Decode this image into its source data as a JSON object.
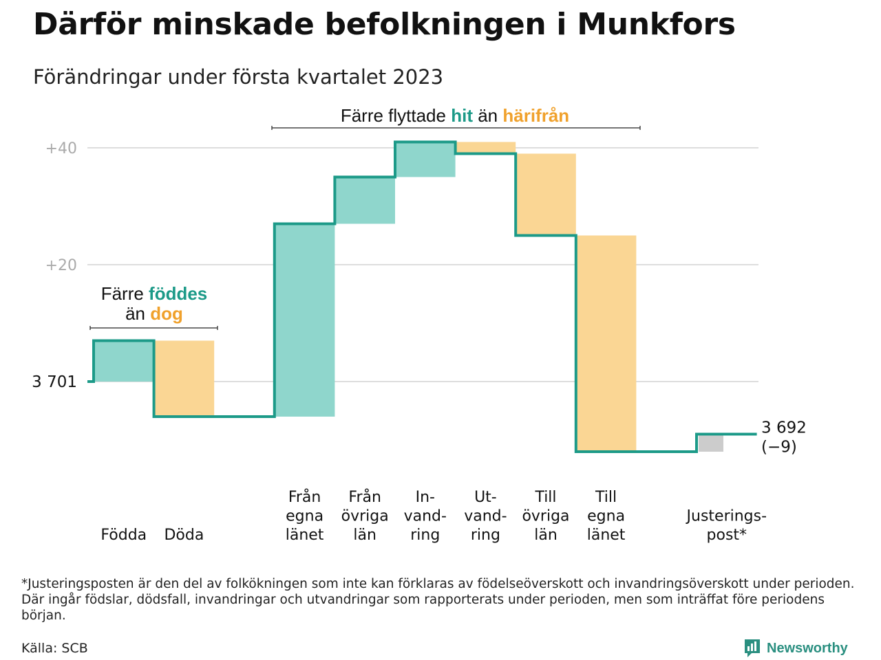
{
  "title": "Därför minskade befolkningen i Munkfors",
  "subtitle": "Förändringar under första kvartalet 2023",
  "colors": {
    "positive": "#8fd6cc",
    "negative": "#fad694",
    "adjustment": "#cccccc",
    "line": "#1c9a88",
    "accent_teal": "#1c9a88",
    "accent_orange": "#f0a12c",
    "grid": "#dddddd",
    "tick_text": "#aaaaaa"
  },
  "annotations": {
    "births": {
      "line1_prefix": "Färre ",
      "line1_highlight": "föddes",
      "line2_prefix": "än ",
      "line2_highlight": "dog"
    },
    "migration": {
      "prefix": "Färre flyttade ",
      "highlight1": "hit",
      "middle": " än ",
      "highlight2": "härifrån"
    }
  },
  "footnote": "*Justeringsposten är den del av folkökningen som inte kan förklaras av födelseöverskott och invandringsöverskott under perioden. Där ingår födslar, dödsfall, invandringar och utvandringar som rapporterats under perioden, men som inträffat före periodens början.",
  "source": "Källa: SCB",
  "brand": "Newsworthy",
  "chart_data": {
    "type": "waterfall",
    "start_value": 3701,
    "start_label": "3 701",
    "end_value": 3692,
    "end_label": "3 692",
    "end_change_label": "(−9)",
    "y_ticks": [
      {
        "value": 20,
        "label": "+20"
      },
      {
        "value": 40,
        "label": "+40"
      }
    ],
    "ylim": [
      -15,
      41
    ],
    "grid": true,
    "steps": [
      {
        "label_lines": [
          "Födda"
        ],
        "change": 7,
        "kind": "positive"
      },
      {
        "label_lines": [
          "Döda"
        ],
        "change": -13,
        "kind": "negative"
      },
      {
        "label_lines": [],
        "change": 0,
        "kind": "gap"
      },
      {
        "label_lines": [
          "Från",
          "egna",
          "länet"
        ],
        "change": 33,
        "kind": "positive"
      },
      {
        "label_lines": [
          "Från",
          "övriga",
          "län"
        ],
        "change": 8,
        "kind": "positive"
      },
      {
        "label_lines": [
          "In-",
          "vand-",
          "ring"
        ],
        "change": 6,
        "kind": "positive"
      },
      {
        "label_lines": [
          "Ut-",
          "vand-",
          "ring"
        ],
        "change": -2,
        "kind": "negative"
      },
      {
        "label_lines": [
          "Till",
          "övriga",
          "län"
        ],
        "change": -14,
        "kind": "negative"
      },
      {
        "label_lines": [
          "Till",
          "egna",
          "länet"
        ],
        "change": -37,
        "kind": "negative"
      },
      {
        "label_lines": [],
        "change": 0,
        "kind": "gap"
      },
      {
        "label_lines": [
          "Justerings-",
          "post*"
        ],
        "change": 3,
        "kind": "adjustment"
      }
    ]
  }
}
